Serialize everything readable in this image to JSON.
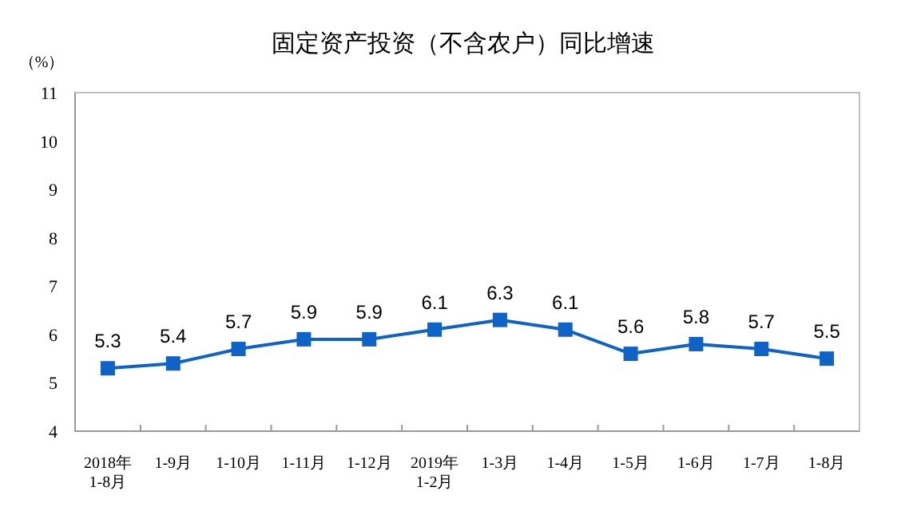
{
  "chart_data": {
    "type": "line",
    "title": "固定资产投资（不含农户）同比增速",
    "ylabel": "（%）",
    "categories": [
      "2018年\n1-8月",
      "1-9月",
      "1-10月",
      "1-11月",
      "1-12月",
      "2019年\n1-2月",
      "1-3月",
      "1-4月",
      "1-5月",
      "1-6月",
      "1-7月",
      "1-8月"
    ],
    "series": [
      {
        "color": "#0f62c6",
        "values": [
          5.3,
          5.4,
          5.7,
          5.9,
          5.9,
          6.1,
          6.3,
          6.1,
          5.6,
          5.8,
          5.7,
          5.5
        ]
      }
    ],
    "ylim": [
      4,
      11
    ],
    "yticks": [
      4,
      5,
      6,
      7,
      8,
      9,
      10,
      11
    ],
    "data_labels": true,
    "marker": "square",
    "grid": false
  }
}
